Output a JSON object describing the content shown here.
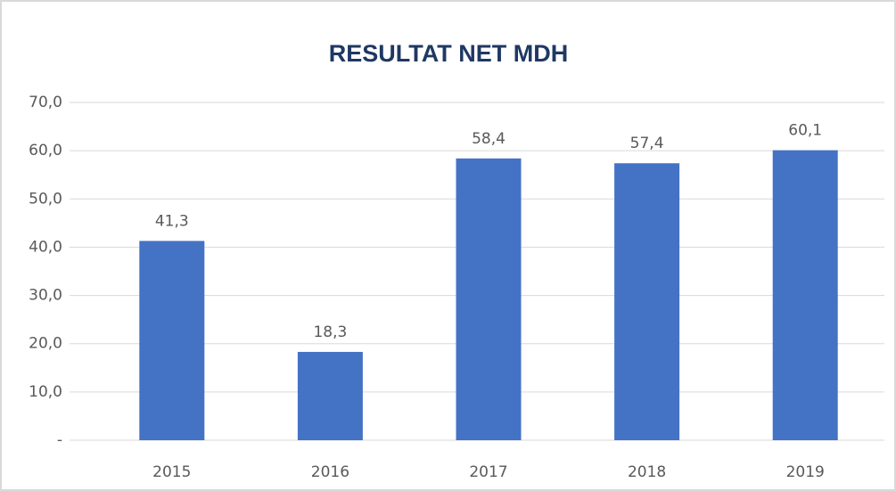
{
  "chart_data": {
    "type": "bar",
    "title": "RESULTAT NET MDH",
    "categories": [
      "2015",
      "2016",
      "2017",
      "2018",
      "2019"
    ],
    "values": [
      41.3,
      18.3,
      58.4,
      57.4,
      60.1
    ],
    "value_labels": [
      "41,3",
      "18,3",
      "58,4",
      "57,4",
      "60,1"
    ],
    "color": "#4472c4",
    "ylim": [
      0,
      70
    ],
    "yticks": [
      {
        "value": 0,
        "label": "-"
      },
      {
        "value": 10,
        "label": "10,0"
      },
      {
        "value": 20,
        "label": "20,0"
      },
      {
        "value": 30,
        "label": "30,0"
      },
      {
        "value": 40,
        "label": "40,0"
      },
      {
        "value": 50,
        "label": "50,0"
      },
      {
        "value": 60,
        "label": "60,0"
      },
      {
        "value": 70,
        "label": "70,0"
      }
    ],
    "grid": true
  }
}
